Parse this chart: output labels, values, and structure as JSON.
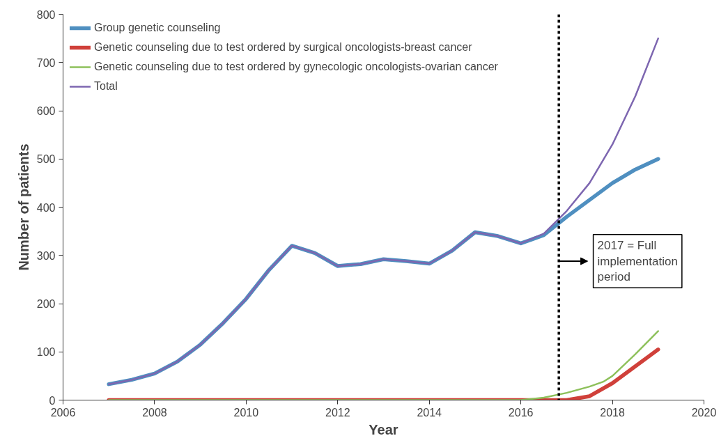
{
  "chart_data": {
    "type": "line",
    "xlabel": "Year",
    "ylabel": "Number of patients",
    "xlim": [
      2006,
      2020
    ],
    "xticks": [
      2006,
      2008,
      2010,
      2012,
      2014,
      2016,
      2018,
      2020
    ],
    "ylim": [
      0,
      800
    ],
    "yticks": [
      0,
      100,
      200,
      300,
      400,
      500,
      600,
      700,
      800
    ],
    "grid": false,
    "legend": "top left",
    "line_style": "solid",
    "marker": "none",
    "series": [
      {
        "name": "Group genetic counseling",
        "color": "#4f8fc0",
        "x": [
          2007,
          2007.5,
          2008,
          2008.5,
          2009,
          2009.5,
          2010,
          2010.5,
          2011,
          2011.5,
          2012,
          2012.5,
          2013,
          2013.5,
          2014,
          2014.5,
          2015,
          2015.5,
          2016,
          2016.5,
          2017,
          2017.5,
          2018,
          2018.5,
          2019
        ],
        "values": [
          33,
          42,
          55,
          80,
          115,
          160,
          210,
          270,
          320,
          305,
          278,
          282,
          292,
          288,
          283,
          310,
          348,
          340,
          325,
          342,
          380,
          415,
          450,
          478,
          500
        ]
      },
      {
        "name": "Genetic counseling due to test ordered by surgical oncologists-breast cancer",
        "color": "#d0403a",
        "x": [
          2007,
          2016.5,
          2017,
          2017.5,
          2018,
          2018.5,
          2019
        ],
        "values": [
          0,
          0,
          0,
          8,
          35,
          70,
          105
        ]
      },
      {
        "name": "Genetic counseling due to test ordered by gynecologic oncologists-ovarian cancer",
        "color": "#8dc05a",
        "x": [
          2007,
          2016,
          2016.5,
          2017,
          2017.5,
          2017.8,
          2018,
          2018.5,
          2019
        ],
        "values": [
          0,
          0,
          5,
          15,
          28,
          38,
          50,
          95,
          143
        ]
      },
      {
        "name": "Total",
        "color": "#7d66b0",
        "x": [
          2007,
          2007.5,
          2008,
          2008.5,
          2009,
          2009.5,
          2010,
          2010.5,
          2011,
          2011.5,
          2012,
          2012.5,
          2013,
          2013.5,
          2014,
          2014.5,
          2015,
          2015.5,
          2016,
          2016.5,
          2017,
          2017.5,
          2018,
          2018.5,
          2019
        ],
        "values": [
          33,
          42,
          55,
          80,
          115,
          160,
          210,
          270,
          320,
          305,
          278,
          282,
          292,
          288,
          283,
          310,
          348,
          340,
          325,
          345,
          392,
          450,
          530,
          630,
          750
        ]
      }
    ],
    "ref_lines": [
      {
        "axis": "x",
        "value": 2016.83,
        "label": "2017 = Full implementation period",
        "color": "#000000",
        "line_style": "dotted"
      }
    ]
  }
}
